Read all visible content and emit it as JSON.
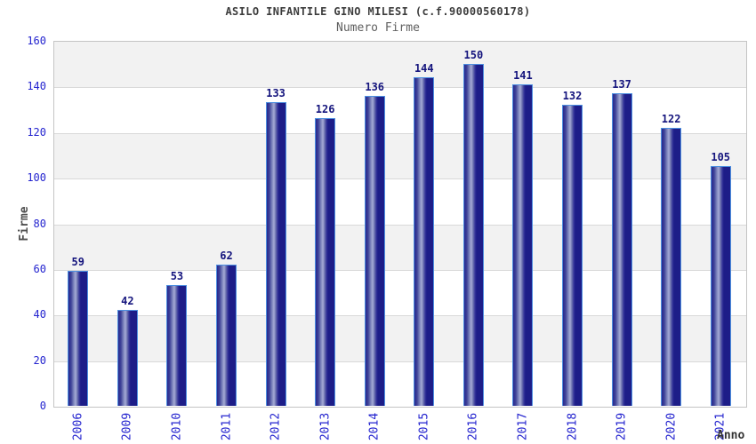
{
  "header": {
    "title": "ASILO INFANTILE GINO MILESI (c.f.90000560178)",
    "subtitle": "Numero Firme"
  },
  "chart_data": {
    "type": "bar",
    "title": "ASILO INFANTILE GINO MILESI (c.f.90000560178)",
    "subtitle": "Numero Firme",
    "xlabel": "Anno",
    "ylabel": "Firme",
    "categories": [
      "2006",
      "2009",
      "2010",
      "2011",
      "2012",
      "2013",
      "2014",
      "2015",
      "2016",
      "2017",
      "2018",
      "2019",
      "2020",
      "2021"
    ],
    "values": [
      59,
      42,
      53,
      62,
      133,
      126,
      136,
      144,
      150,
      141,
      132,
      137,
      122,
      105
    ],
    "ylim": [
      0,
      160
    ],
    "ytick_step": 20,
    "yticks": [
      0,
      20,
      40,
      60,
      80,
      100,
      120,
      140,
      160
    ],
    "grid": true,
    "band_fill": true,
    "legend": "none",
    "value_labels_shown": true
  },
  "colors": {
    "tick_label": "#2424cf",
    "category_label": "#2424cf",
    "value_label": "#14147d",
    "bar_dark": "#1d1d88",
    "bar_highlight": "#a6abd6",
    "bar_border": "#4d8fe0",
    "band_gray": "#f2f2f2",
    "gridline": "#d9d9d9",
    "plot_border": "#c4c4c4",
    "title": "#3c3c3c",
    "subtitle": "#5f5f5f",
    "axis_title": "#4f4f4f"
  }
}
